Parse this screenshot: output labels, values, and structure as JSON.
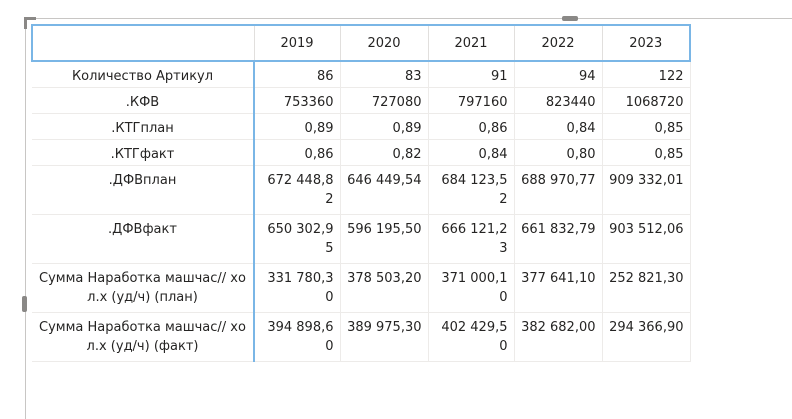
{
  "matrix": {
    "columns": [
      "",
      "2019",
      "2020",
      "2021",
      "2022",
      "2023"
    ],
    "rows": [
      {
        "label": "Количество Артикул",
        "values": [
          "86",
          "83",
          "91",
          "94",
          "122"
        ]
      },
      {
        "label": ".КФВ",
        "values": [
          "753360",
          "727080",
          "797160",
          "823440",
          "1068720"
        ]
      },
      {
        "label": ".КТГплан",
        "values": [
          "0,89",
          "0,89",
          "0,86",
          "0,84",
          "0,85"
        ]
      },
      {
        "label": ".КТГфакт",
        "values": [
          "0,86",
          "0,82",
          "0,84",
          "0,80",
          "0,85"
        ]
      },
      {
        "label": ".ДФВплан",
        "values": [
          "672 448,82",
          "646 449,54",
          "684 123,52",
          "688 970,77",
          "909 332,01"
        ]
      },
      {
        "label": ".ДФВфакт",
        "values": [
          "650 302,95",
          "596 195,50",
          "666 121,23",
          "661 832,79",
          "903 512,06"
        ]
      },
      {
        "label": "Сумма Наработка машчас// хол.х (уд/ч) (план)",
        "values": [
          "331 780,30",
          "378 503,20",
          "371 000,10",
          "377 641,10",
          "252 821,30"
        ]
      },
      {
        "label": "Сумма Наработка машчас// хол.х (уд/ч) (факт)",
        "values": [
          "394 898,60",
          "389 975,30",
          "402 429,50",
          "382 682,00",
          "294 366,90"
        ]
      }
    ]
  }
}
